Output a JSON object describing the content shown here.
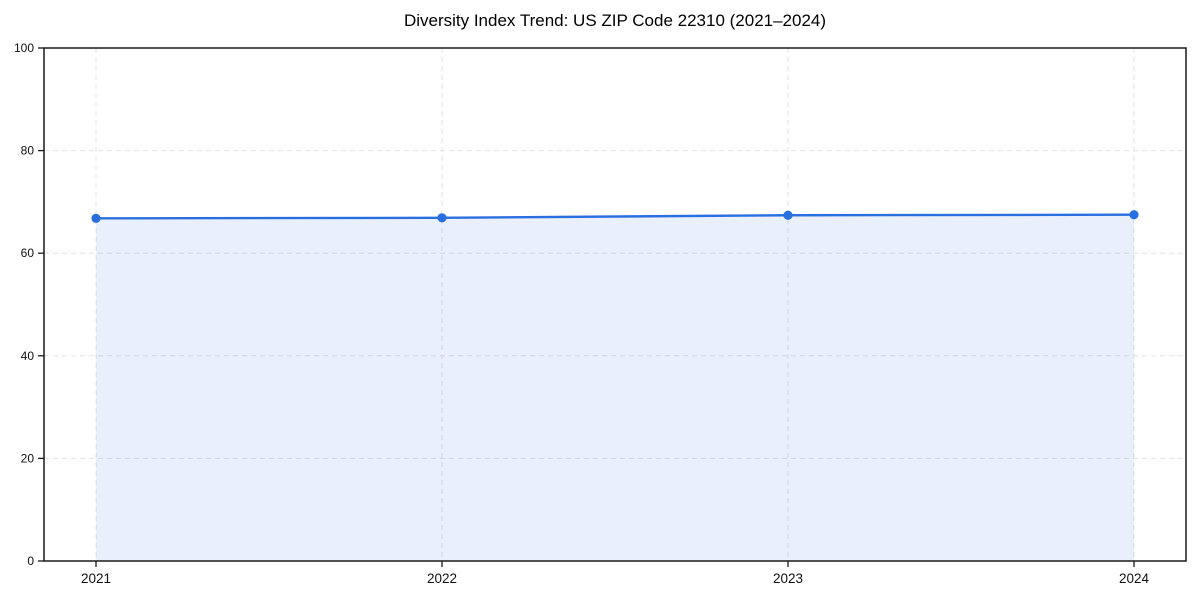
{
  "chart_data": {
    "type": "area",
    "title": "Diversity Index Trend: US ZIP Code 22310 (2021–2024)",
    "categories": [
      "2021",
      "2022",
      "2023",
      "2024"
    ],
    "series": [
      {
        "name": "Diversity Index",
        "values": [
          66.8,
          66.9,
          67.4,
          67.5
        ]
      }
    ],
    "xlabel": "",
    "ylabel": "",
    "ylim": [
      0,
      100
    ],
    "yticks": [
      0,
      20,
      40,
      60,
      80,
      100
    ],
    "grid": true,
    "grid_style": "dashed",
    "legend_position": "none",
    "line_color": "#2a6fdf",
    "marker": "circle",
    "area_fill_color": "#2a6fdf",
    "area_fill_opacity": 0.1,
    "axis_box": true
  }
}
